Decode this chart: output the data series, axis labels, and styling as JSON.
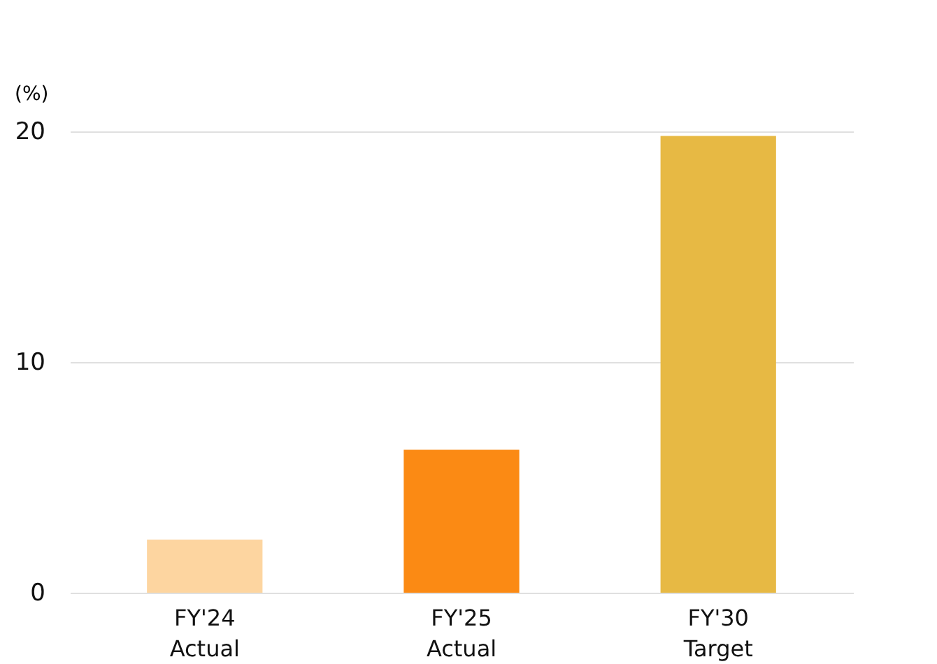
{
  "chart_data": {
    "type": "bar",
    "ylabel": "(%)",
    "categories": [
      "FY'24\nActual",
      "FY'25\nActual",
      "FY'30\nTarget"
    ],
    "values": [
      2.3,
      6.2,
      19.8
    ],
    "colors": [
      "#fdd5a0",
      "#fb8a14",
      "#e7b944"
    ],
    "ylim": [
      0,
      20
    ],
    "yticks": [
      0,
      10,
      20
    ],
    "grid": "y"
  }
}
